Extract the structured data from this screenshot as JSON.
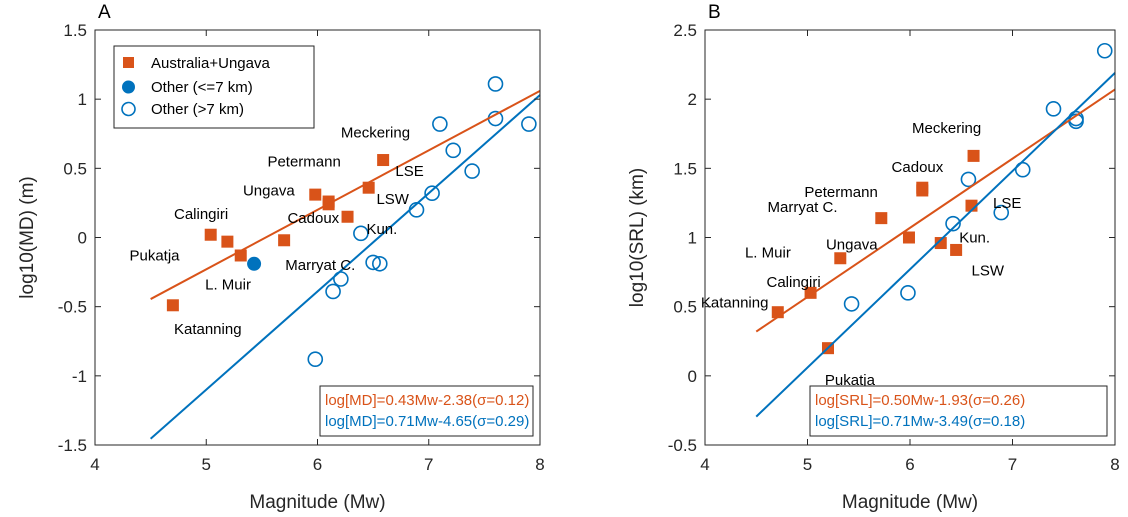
{
  "colors": {
    "australia": "#D95319",
    "other": "#0072BD",
    "axis": "#262626"
  },
  "legend": {
    "australia": "Australia+Ungava",
    "other_shallow": "Other (<=7 km)",
    "other_deep": "Other (>7 km)"
  },
  "chart_data": [
    {
      "type": "scatter",
      "panel_label": "A",
      "xlabel": "Magnitude (Mw)",
      "ylabel": "log10(MD) (m)",
      "xlim": [
        4,
        8
      ],
      "ylim": [
        -1.5,
        1.5
      ],
      "xticks": [
        4,
        5,
        6,
        7,
        8
      ],
      "xtick_labels": [
        "4",
        "5",
        "6",
        "7",
        "8"
      ],
      "yticks": [
        -1.5,
        -1,
        -0.5,
        0,
        0.5,
        1,
        1.5
      ],
      "ytick_labels": [
        "-1.5",
        "-1",
        "-0.5",
        "0",
        "0.5",
        "1",
        "1.5"
      ],
      "grid": false,
      "legend_position": "top-left",
      "series": [
        {
          "name": "Australia+Ungava",
          "marker": "square",
          "points": [
            {
              "x": 4.7,
              "y": -0.49
            },
            {
              "x": 5.04,
              "y": 0.02
            },
            {
              "x": 5.19,
              "y": -0.03
            },
            {
              "x": 5.31,
              "y": -0.13
            },
            {
              "x": 5.7,
              "y": -0.02
            },
            {
              "x": 5.98,
              "y": 0.31
            },
            {
              "x": 6.1,
              "y": 0.26
            },
            {
              "x": 6.1,
              "y": 0.24
            },
            {
              "x": 6.27,
              "y": 0.15
            },
            {
              "x": 6.46,
              "y": 0.36
            },
            {
              "x": 6.59,
              "y": 0.56
            }
          ]
        },
        {
          "name": "Other (<=7 km)",
          "marker": "filled-circle",
          "points": [
            {
              "x": 5.43,
              "y": -0.19
            }
          ]
        },
        {
          "name": "Other (>7 km)",
          "marker": "open-circle",
          "points": [
            {
              "x": 5.98,
              "y": -0.88
            },
            {
              "x": 6.14,
              "y": -0.39
            },
            {
              "x": 6.21,
              "y": -0.3
            },
            {
              "x": 6.39,
              "y": 0.03
            },
            {
              "x": 6.5,
              "y": -0.18
            },
            {
              "x": 6.56,
              "y": -0.19
            },
            {
              "x": 6.89,
              "y": 0.2
            },
            {
              "x": 7.03,
              "y": 0.32
            },
            {
              "x": 7.1,
              "y": 0.82
            },
            {
              "x": 7.22,
              "y": 0.63
            },
            {
              "x": 7.39,
              "y": 0.48
            },
            {
              "x": 7.6,
              "y": 1.11
            },
            {
              "x": 7.6,
              "y": 0.86
            },
            {
              "x": 7.9,
              "y": 0.82
            }
          ]
        }
      ],
      "fits": [
        {
          "label": "log[MD]=0.43Mw-2.38(σ=0.12)",
          "color_key": "australia",
          "slope": 0.43,
          "intercept": -2.38,
          "x_range": [
            4.5,
            8
          ]
        },
        {
          "label": "log[MD]=0.71Mw-4.65(σ=0.29)",
          "color_key": "other",
          "slope": 0.71,
          "intercept": -4.65,
          "x_range": [
            4.5,
            8
          ]
        }
      ],
      "annotations": [
        {
          "text": "Katanning",
          "x": 4.71,
          "y": -0.66
        },
        {
          "text": "Pukatja",
          "x": 4.31,
          "y": -0.13
        },
        {
          "text": "Calingiri",
          "x": 4.71,
          "y": 0.17
        },
        {
          "text": "L. Muir",
          "x": 4.99,
          "y": -0.34
        },
        {
          "text": "Marryat C.",
          "x": 5.71,
          "y": -0.2
        },
        {
          "text": "Ungava",
          "x": 5.33,
          "y": 0.34
        },
        {
          "text": "Petermann",
          "x": 5.55,
          "y": 0.55
        },
        {
          "text": "Cadoux",
          "x": 5.73,
          "y": 0.14
        },
        {
          "text": "Meckering",
          "x": 6.21,
          "y": 0.76
        },
        {
          "text": "LSE",
          "x": 6.7,
          "y": 0.48
        },
        {
          "text": "LSW",
          "x": 6.53,
          "y": 0.28
        },
        {
          "text": "Kun.",
          "x": 6.44,
          "y": 0.06
        }
      ]
    },
    {
      "type": "scatter",
      "panel_label": "B",
      "xlabel": "Magnitude (Mw)",
      "ylabel": "log10(SRL) (km)",
      "xlim": [
        4,
        8
      ],
      "ylim": [
        -0.5,
        2.5
      ],
      "xticks": [
        4,
        5,
        6,
        7,
        8
      ],
      "xtick_labels": [
        "4",
        "5",
        "6",
        "7",
        "8"
      ],
      "yticks": [
        -0.5,
        0,
        0.5,
        1,
        1.5,
        2,
        2.5
      ],
      "ytick_labels": [
        "-0.5",
        "0",
        "0.5",
        "1",
        "1.5",
        "2",
        "2.5"
      ],
      "grid": false,
      "series": [
        {
          "name": "Australia+Ungava",
          "marker": "square",
          "points": [
            {
              "x": 4.71,
              "y": 0.46
            },
            {
              "x": 5.03,
              "y": 0.6
            },
            {
              "x": 5.2,
              "y": 0.2
            },
            {
              "x": 5.32,
              "y": 0.85
            },
            {
              "x": 5.72,
              "y": 1.14
            },
            {
              "x": 5.99,
              "y": 1.0
            },
            {
              "x": 6.12,
              "y": 1.36
            },
            {
              "x": 6.12,
              "y": 1.34
            },
            {
              "x": 6.3,
              "y": 0.96
            },
            {
              "x": 6.45,
              "y": 0.91
            },
            {
              "x": 6.6,
              "y": 1.23
            },
            {
              "x": 6.62,
              "y": 1.59
            }
          ]
        },
        {
          "name": "Other (>7 km)",
          "marker": "open-circle",
          "points": [
            {
              "x": 5.43,
              "y": 0.52
            },
            {
              "x": 5.98,
              "y": 0.6
            },
            {
              "x": 6.42,
              "y": 1.1
            },
            {
              "x": 6.57,
              "y": 1.42
            },
            {
              "x": 6.89,
              "y": 1.18
            },
            {
              "x": 7.1,
              "y": 1.49
            },
            {
              "x": 7.4,
              "y": 1.93
            },
            {
              "x": 7.62,
              "y": 1.86
            },
            {
              "x": 7.62,
              "y": 1.84
            },
            {
              "x": 7.9,
              "y": 2.35
            }
          ]
        }
      ],
      "fits": [
        {
          "label": "log[SRL]=0.50Mw-1.93(σ=0.26)",
          "color_key": "australia",
          "slope": 0.5,
          "intercept": -1.93,
          "x_range": [
            4.5,
            8
          ]
        },
        {
          "label": "log[SRL]=0.71Mw-3.49(σ=0.18)",
          "color_key": "other",
          "slope": 0.71,
          "intercept": -3.49,
          "x_range": [
            4.5,
            8
          ]
        }
      ],
      "annotations": [
        {
          "text": "Katanning",
          "x": 3.96,
          "y": 0.53
        },
        {
          "text": "Calingiri",
          "x": 4.6,
          "y": 0.68
        },
        {
          "text": "L. Muir",
          "x": 4.39,
          "y": 0.89
        },
        {
          "text": "Pukatja",
          "x": 5.17,
          "y": -0.03
        },
        {
          "text": "Ungava",
          "x": 5.18,
          "y": 0.95
        },
        {
          "text": "Marryat C.",
          "x": 4.61,
          "y": 1.22
        },
        {
          "text": "Petermann",
          "x": 4.97,
          "y": 1.33
        },
        {
          "text": "Cadoux",
          "x": 5.82,
          "y": 1.51
        },
        {
          "text": "Meckering",
          "x": 6.02,
          "y": 1.79
        },
        {
          "text": "LSE",
          "x": 6.81,
          "y": 1.25
        },
        {
          "text": "LSW",
          "x": 6.6,
          "y": 0.76
        },
        {
          "text": "Kun.",
          "x": 6.48,
          "y": 1.0
        }
      ]
    }
  ]
}
